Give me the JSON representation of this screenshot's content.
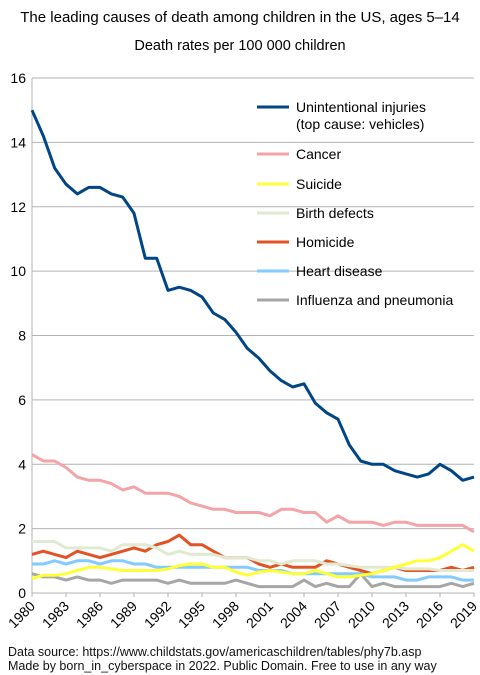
{
  "chart_data": {
    "type": "line",
    "title": "The leading causes of death among children in the US, ages 5–14",
    "subtitle": "Death rates per 100 000 children",
    "xlabel": "",
    "ylabel": "",
    "xlim": [
      1980,
      2019
    ],
    "ylim": [
      0,
      16
    ],
    "yticks": [
      0,
      2,
      4,
      6,
      8,
      10,
      12,
      14,
      16
    ],
    "xticks": [
      1980,
      1983,
      1986,
      1989,
      1992,
      1995,
      1998,
      2001,
      2004,
      2007,
      2010,
      2013,
      2016,
      2019
    ],
    "grid": "horizontal",
    "legend": "top-right",
    "x": [
      1980,
      1981,
      1982,
      1983,
      1984,
      1985,
      1986,
      1987,
      1988,
      1989,
      1990,
      1991,
      1992,
      1993,
      1994,
      1995,
      1996,
      1997,
      1998,
      1999,
      2000,
      2001,
      2002,
      2003,
      2004,
      2005,
      2006,
      2007,
      2008,
      2009,
      2010,
      2011,
      2012,
      2013,
      2014,
      2015,
      2016,
      2017,
      2018,
      2019
    ],
    "series": [
      {
        "name": "Unintentional injuries",
        "name_line2": "(top cause: vehicles)",
        "color": "#004586",
        "width": 3,
        "values": [
          15.0,
          14.2,
          13.2,
          12.7,
          12.4,
          12.6,
          12.6,
          12.4,
          12.3,
          11.8,
          10.4,
          10.4,
          9.4,
          9.5,
          9.4,
          9.2,
          8.7,
          8.5,
          8.1,
          7.6,
          7.3,
          6.9,
          6.6,
          6.4,
          6.5,
          5.9,
          5.6,
          5.4,
          4.6,
          4.1,
          4.0,
          4.0,
          3.8,
          3.7,
          3.6,
          3.7,
          4.0,
          3.8,
          3.5,
          3.6
        ]
      },
      {
        "name": "Cancer",
        "color": "#f4a3a6",
        "width": 3,
        "values": [
          4.3,
          4.1,
          4.1,
          3.9,
          3.6,
          3.5,
          3.5,
          3.4,
          3.2,
          3.3,
          3.1,
          3.1,
          3.1,
          3.0,
          2.8,
          2.7,
          2.6,
          2.6,
          2.5,
          2.5,
          2.5,
          2.4,
          2.6,
          2.6,
          2.5,
          2.5,
          2.2,
          2.4,
          2.2,
          2.2,
          2.2,
          2.1,
          2.2,
          2.2,
          2.1,
          2.1,
          2.1,
          2.1,
          2.1,
          1.9
        ]
      },
      {
        "name": "Suicide",
        "color": "#ffff38",
        "width": 3,
        "values": [
          0.45,
          0.55,
          0.55,
          0.6,
          0.7,
          0.8,
          0.8,
          0.75,
          0.7,
          0.7,
          0.7,
          0.7,
          0.75,
          0.85,
          0.9,
          0.9,
          0.8,
          0.8,
          0.65,
          0.55,
          0.65,
          0.7,
          0.65,
          0.6,
          0.6,
          0.7,
          0.6,
          0.5,
          0.5,
          0.55,
          0.6,
          0.7,
          0.8,
          0.9,
          1.0,
          1.0,
          1.1,
          1.3,
          1.5,
          1.3
        ]
      },
      {
        "name": "Birth defects",
        "color": "#e0ead0",
        "width": 3,
        "values": [
          1.6,
          1.6,
          1.6,
          1.4,
          1.4,
          1.4,
          1.4,
          1.3,
          1.5,
          1.5,
          1.5,
          1.4,
          1.2,
          1.3,
          1.2,
          1.2,
          1.2,
          1.1,
          1.1,
          1.1,
          1.0,
          1.0,
          0.9,
          1.0,
          1.0,
          1.0,
          0.9,
          0.9,
          0.85,
          0.8,
          0.8,
          0.8,
          0.8,
          0.75,
          0.75,
          0.75,
          0.7,
          0.7,
          0.7,
          0.7
        ]
      },
      {
        "name": "Homicide",
        "color": "#e35224",
        "width": 3,
        "values": [
          1.2,
          1.3,
          1.2,
          1.1,
          1.3,
          1.2,
          1.1,
          1.2,
          1.3,
          1.4,
          1.3,
          1.5,
          1.6,
          1.8,
          1.5,
          1.5,
          1.3,
          1.1,
          1.1,
          1.1,
          0.9,
          0.8,
          0.9,
          0.8,
          0.8,
          0.8,
          1.0,
          0.9,
          0.8,
          0.7,
          0.6,
          0.7,
          0.8,
          0.7,
          0.7,
          0.7,
          0.7,
          0.8,
          0.7,
          0.8
        ]
      },
      {
        "name": "Heart disease",
        "color": "#83caff",
        "width": 3,
        "values": [
          0.9,
          0.9,
          1.0,
          0.9,
          1.0,
          1.0,
          0.9,
          1.0,
          1.0,
          0.9,
          0.9,
          0.8,
          0.8,
          0.8,
          0.8,
          0.8,
          0.8,
          0.8,
          0.8,
          0.8,
          0.7,
          0.7,
          0.7,
          0.6,
          0.6,
          0.6,
          0.6,
          0.6,
          0.6,
          0.6,
          0.5,
          0.5,
          0.5,
          0.4,
          0.4,
          0.5,
          0.5,
          0.5,
          0.4,
          0.4
        ]
      },
      {
        "name": "Influenza and pneumonia",
        "color": "#a6a6a6",
        "width": 3,
        "values": [
          0.6,
          0.5,
          0.5,
          0.4,
          0.5,
          0.4,
          0.4,
          0.3,
          0.4,
          0.4,
          0.4,
          0.4,
          0.3,
          0.4,
          0.3,
          0.3,
          0.3,
          0.3,
          0.4,
          0.3,
          0.2,
          0.2,
          0.2,
          0.2,
          0.4,
          0.2,
          0.3,
          0.2,
          0.2,
          0.6,
          0.2,
          0.3,
          0.2,
          0.2,
          0.2,
          0.2,
          0.2,
          0.3,
          0.2,
          0.3
        ]
      }
    ]
  },
  "footer": {
    "source": "Data source: https://www.childstats.gov/americaschildren/tables/phy7b.asp",
    "credit": "Made by born_in_cyberspace in 2022. Public Domain. Free to use in any way"
  }
}
